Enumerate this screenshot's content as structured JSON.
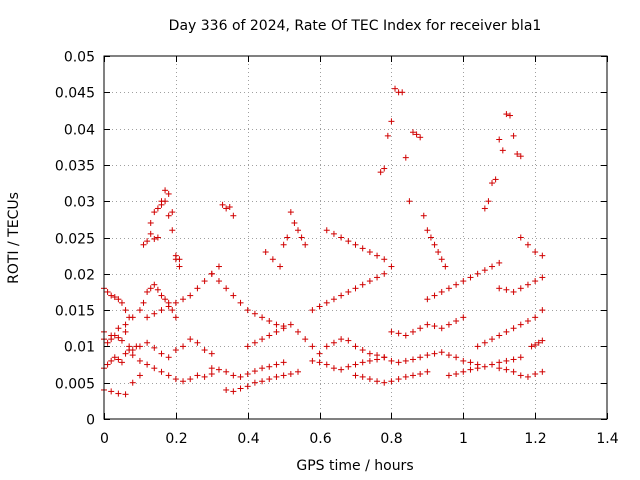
{
  "chart_data": {
    "type": "scatter",
    "title": "Day 336 of 2024, Rate Of TEC Index for receiver bla1",
    "xlabel": "GPS time / hours",
    "ylabel": "ROTI / TECUs",
    "xlim": [
      0,
      1.4
    ],
    "ylim": [
      0,
      0.05
    ],
    "xticks": [
      0,
      0.2,
      0.4,
      0.6,
      0.8,
      1,
      1.2,
      1.4
    ],
    "xtick_labels": [
      "0",
      "0.2",
      "0.4",
      "0.6",
      "0.8",
      "1",
      "1.2",
      "1.4"
    ],
    "yticks": [
      0,
      0.005,
      0.01,
      0.015,
      0.02,
      0.025,
      0.03,
      0.035,
      0.04,
      0.045,
      0.05
    ],
    "ytick_labels": [
      "0",
      "0.005",
      "0.01",
      "0.015",
      "0.02",
      "0.025",
      "0.03",
      "0.035",
      "0.04",
      "0.045",
      "0.05"
    ],
    "grid": true,
    "marker": "+",
    "color": "#d00000",
    "series": [
      {
        "name": "ROTI",
        "x": [
          0.0,
          0.01,
          0.02,
          0.03,
          0.04,
          0.05,
          0.06,
          0.07,
          0.0,
          0.01,
          0.02,
          0.03,
          0.04,
          0.05,
          0.06,
          0.07,
          0.08,
          0.0,
          0.01,
          0.02,
          0.03,
          0.04,
          0.05,
          0.06,
          0.07,
          0.08,
          0.09,
          0.0,
          0.02,
          0.04,
          0.06,
          0.08,
          0.1,
          0.0,
          0.02,
          0.04,
          0.06,
          0.08,
          0.1,
          0.11,
          0.12,
          0.13,
          0.14,
          0.15,
          0.16,
          0.17,
          0.18,
          0.19,
          0.2,
          0.11,
          0.12,
          0.13,
          0.14,
          0.15,
          0.16,
          0.17,
          0.18,
          0.19,
          0.2,
          0.21,
          0.1,
          0.12,
          0.14,
          0.16,
          0.18,
          0.2,
          0.22,
          0.24,
          0.26,
          0.28,
          0.3,
          0.1,
          0.12,
          0.14,
          0.16,
          0.18,
          0.2,
          0.22,
          0.24,
          0.26,
          0.28,
          0.3,
          0.12,
          0.14,
          0.16,
          0.18,
          0.2,
          0.22,
          0.24,
          0.26,
          0.28,
          0.3,
          0.32,
          0.17,
          0.18,
          0.16,
          0.19,
          0.13,
          0.14,
          0.15,
          0.2,
          0.21,
          0.33,
          0.34,
          0.35,
          0.36,
          0.3,
          0.32,
          0.34,
          0.36,
          0.38,
          0.4,
          0.42,
          0.44,
          0.46,
          0.48,
          0.5,
          0.3,
          0.32,
          0.34,
          0.36,
          0.38,
          0.4,
          0.42,
          0.44,
          0.46,
          0.48,
          0.5,
          0.34,
          0.36,
          0.38,
          0.4,
          0.42,
          0.44,
          0.46,
          0.48,
          0.5,
          0.52,
          0.54,
          0.4,
          0.42,
          0.44,
          0.46,
          0.48,
          0.5,
          0.52,
          0.54,
          0.56,
          0.58,
          0.6,
          0.5,
          0.51,
          0.52,
          0.53,
          0.54,
          0.55,
          0.56,
          0.45,
          0.47,
          0.49,
          0.58,
          0.6,
          0.62,
          0.64,
          0.66,
          0.68,
          0.7,
          0.72,
          0.74,
          0.76,
          0.78,
          0.58,
          0.6,
          0.62,
          0.64,
          0.66,
          0.68,
          0.7,
          0.72,
          0.74,
          0.76,
          0.78,
          0.62,
          0.64,
          0.66,
          0.68,
          0.7,
          0.72,
          0.74,
          0.76,
          0.78,
          0.8,
          0.62,
          0.64,
          0.66,
          0.68,
          0.7,
          0.72,
          0.74,
          0.76,
          0.78,
          0.8,
          0.82,
          0.7,
          0.72,
          0.74,
          0.76,
          0.78,
          0.8,
          0.82,
          0.84,
          0.86,
          0.88,
          0.9,
          0.77,
          0.78,
          0.79,
          0.8,
          0.81,
          0.82,
          0.83,
          0.84,
          0.85,
          0.86,
          0.87,
          0.88,
          0.89,
          0.9,
          0.91,
          0.92,
          0.93,
          0.94,
          0.95,
          0.8,
          0.82,
          0.84,
          0.86,
          0.88,
          0.9,
          0.92,
          0.94,
          0.96,
          0.98,
          1.0,
          0.84,
          0.86,
          0.88,
          0.9,
          0.92,
          0.94,
          0.96,
          0.98,
          1.0,
          1.02,
          1.04,
          0.9,
          0.92,
          0.94,
          0.96,
          0.98,
          1.0,
          1.02,
          1.04,
          1.06,
          1.08,
          1.1,
          0.96,
          0.98,
          1.0,
          1.02,
          1.04,
          1.06,
          1.08,
          1.1,
          1.12,
          1.14,
          1.16,
          1.04,
          1.06,
          1.08,
          1.1,
          1.12,
          1.14,
          1.16,
          1.18,
          1.2,
          1.22,
          1.06,
          1.07,
          1.08,
          1.09,
          1.1,
          1.11,
          1.12,
          1.13,
          1.14,
          1.15,
          1.16,
          1.1,
          1.12,
          1.14,
          1.16,
          1.18,
          1.2,
          1.22,
          1.1,
          1.12,
          1.14,
          1.16,
          1.18,
          1.2,
          1.22,
          1.16,
          1.18,
          1.2,
          1.22,
          1.19,
          1.2,
          1.21,
          1.22
        ],
        "y": [
          0.018,
          0.0175,
          0.017,
          0.0168,
          0.0165,
          0.016,
          0.015,
          0.014,
          0.011,
          0.0105,
          0.011,
          0.0115,
          0.0112,
          0.0108,
          0.012,
          0.01,
          0.0095,
          0.007,
          0.0075,
          0.008,
          0.0085,
          0.0082,
          0.0078,
          0.009,
          0.0095,
          0.0088,
          0.01,
          0.004,
          0.0038,
          0.0035,
          0.0034,
          0.005,
          0.006,
          0.012,
          0.0115,
          0.0125,
          0.013,
          0.014,
          0.015,
          0.016,
          0.0175,
          0.018,
          0.0185,
          0.0178,
          0.017,
          0.0165,
          0.016,
          0.015,
          0.014,
          0.024,
          0.0245,
          0.027,
          0.0285,
          0.029,
          0.0295,
          0.03,
          0.028,
          0.026,
          0.022,
          0.021,
          0.008,
          0.0075,
          0.007,
          0.0065,
          0.006,
          0.0055,
          0.0052,
          0.0055,
          0.006,
          0.0058,
          0.0062,
          0.01,
          0.0105,
          0.0098,
          0.009,
          0.0085,
          0.0095,
          0.01,
          0.011,
          0.0105,
          0.0095,
          0.009,
          0.014,
          0.0145,
          0.015,
          0.0155,
          0.016,
          0.0165,
          0.017,
          0.018,
          0.019,
          0.02,
          0.021,
          0.0315,
          0.031,
          0.03,
          0.0285,
          0.0255,
          0.0248,
          0.025,
          0.0225,
          0.022,
          0.0295,
          0.029,
          0.0292,
          0.028,
          0.02,
          0.019,
          0.018,
          0.017,
          0.016,
          0.015,
          0.0145,
          0.014,
          0.0135,
          0.013,
          0.0128,
          0.007,
          0.0068,
          0.0065,
          0.006,
          0.0058,
          0.0062,
          0.0066,
          0.007,
          0.0072,
          0.0075,
          0.0078,
          0.004,
          0.0038,
          0.0042,
          0.0045,
          0.005,
          0.0052,
          0.0055,
          0.0058,
          0.006,
          0.0062,
          0.0065,
          0.01,
          0.0105,
          0.011,
          0.0115,
          0.012,
          0.0125,
          0.013,
          0.012,
          0.011,
          0.01,
          0.009,
          0.024,
          0.025,
          0.0285,
          0.027,
          0.026,
          0.025,
          0.024,
          0.023,
          0.022,
          0.021,
          0.008,
          0.0078,
          0.0075,
          0.007,
          0.0068,
          0.0072,
          0.0075,
          0.0078,
          0.008,
          0.0082,
          0.0085,
          0.015,
          0.0155,
          0.016,
          0.0165,
          0.017,
          0.0175,
          0.018,
          0.0185,
          0.019,
          0.0195,
          0.02,
          0.026,
          0.0255,
          0.025,
          0.0245,
          0.024,
          0.0235,
          0.023,
          0.0225,
          0.022,
          0.021,
          0.01,
          0.0105,
          0.011,
          0.0108,
          0.01,
          0.0095,
          0.009,
          0.0088,
          0.0085,
          0.008,
          0.0078,
          0.006,
          0.0058,
          0.0055,
          0.0052,
          0.005,
          0.0052,
          0.0055,
          0.0058,
          0.006,
          0.0062,
          0.0065,
          0.034,
          0.0345,
          0.039,
          0.041,
          0.0455,
          0.045,
          0.045,
          0.036,
          0.03,
          0.0395,
          0.0392,
          0.0388,
          0.028,
          0.026,
          0.025,
          0.024,
          0.023,
          0.022,
          0.021,
          0.012,
          0.0118,
          0.0115,
          0.012,
          0.0125,
          0.013,
          0.0128,
          0.0125,
          0.013,
          0.0135,
          0.014,
          0.008,
          0.0082,
          0.0085,
          0.0088,
          0.009,
          0.0092,
          0.0088,
          0.0085,
          0.008,
          0.0078,
          0.0075,
          0.0165,
          0.017,
          0.0175,
          0.018,
          0.0185,
          0.019,
          0.0195,
          0.02,
          0.0205,
          0.021,
          0.0215,
          0.006,
          0.0062,
          0.0065,
          0.0068,
          0.007,
          0.0072,
          0.0075,
          0.0078,
          0.008,
          0.0082,
          0.0085,
          0.01,
          0.0105,
          0.011,
          0.0115,
          0.012,
          0.0125,
          0.013,
          0.0135,
          0.014,
          0.015,
          0.029,
          0.03,
          0.0325,
          0.033,
          0.0385,
          0.037,
          0.042,
          0.0418,
          0.039,
          0.0365,
          0.0362,
          0.018,
          0.0178,
          0.0175,
          0.018,
          0.0185,
          0.019,
          0.0195,
          0.007,
          0.0068,
          0.0065,
          0.006,
          0.0058,
          0.0062,
          0.0065,
          0.025,
          0.024,
          0.023,
          0.0225,
          0.01,
          0.0102,
          0.0105,
          0.0108
        ]
      }
    ]
  }
}
